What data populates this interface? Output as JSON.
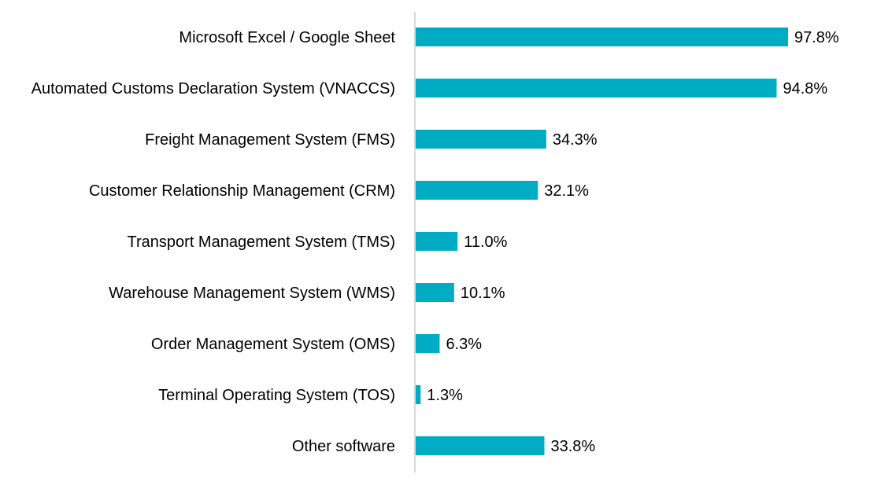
{
  "chart_data": {
    "type": "bar",
    "orientation": "horizontal",
    "categories": [
      "Microsoft Excel / Google Sheet",
      "Automated Customs Declaration System (VNACCS)",
      "Freight Management System (FMS)",
      "Customer Relationship Management (CRM)",
      "Transport Management System (TMS)",
      "Warehouse Management System (WMS)",
      "Order Management System (OMS)",
      "Terminal Operating System (TOS)",
      "Other software"
    ],
    "values": [
      97.8,
      94.8,
      34.3,
      32.1,
      11.0,
      10.1,
      6.3,
      1.3,
      33.8
    ],
    "data_labels": [
      "97.8%",
      "94.8%",
      "34.3%",
      "32.1%",
      "11.0%",
      "10.1%",
      "6.3%",
      "1.3%",
      "33.8%"
    ],
    "xlim": [
      0,
      100
    ],
    "grid": false,
    "legend": "none",
    "colors": {
      "bar": "#00ACC3",
      "axis": "#D9D9D9"
    }
  }
}
